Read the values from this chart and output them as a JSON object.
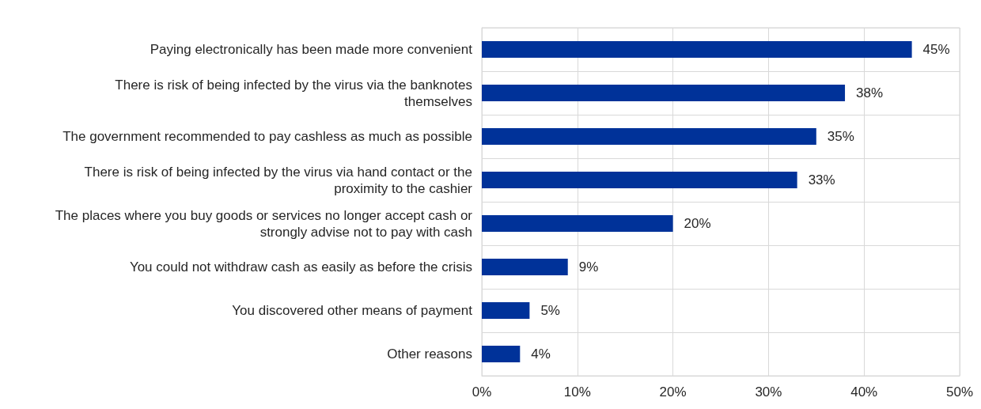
{
  "chart_data": {
    "type": "bar",
    "orientation": "horizontal",
    "categories": [
      "Paying electronically has been made more convenient",
      "There is risk of being infected by the virus via the banknotes\nthemselves",
      "The government recommended to pay cashless as much as possible",
      "There is risk of being infected by the virus via hand contact or the\nproximity to the cashier",
      "The places where you buy goods or services no longer accept cash or\nstrongly advise not to pay with cash",
      "You could not withdraw cash as easily as before the crisis",
      "You discovered other means of payment",
      "Other reasons"
    ],
    "values": [
      45,
      38,
      35,
      33,
      20,
      9,
      5,
      4
    ],
    "value_labels": [
      "45%",
      "38%",
      "35%",
      "33%",
      "20%",
      "9%",
      "5%",
      "4%"
    ],
    "color": "#003299",
    "xlim": [
      0,
      50
    ],
    "xticks": [
      {
        "value": 0,
        "label": "0%"
      },
      {
        "value": 10,
        "label": "10%"
      },
      {
        "value": 20,
        "label": "20%"
      },
      {
        "value": 30,
        "label": "30%"
      },
      {
        "value": 40,
        "label": "40%"
      },
      {
        "value": 50,
        "label": "50%"
      }
    ],
    "grid": true
  }
}
